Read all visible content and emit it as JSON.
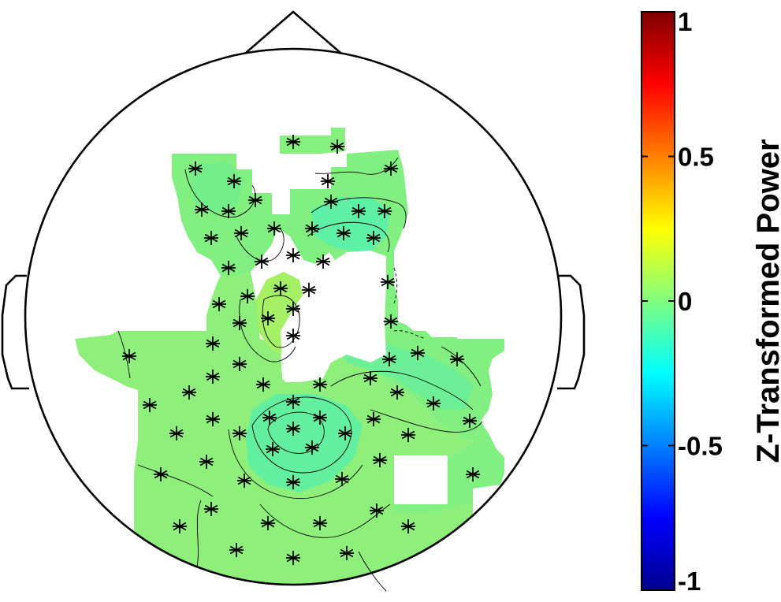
{
  "chart_data": {
    "type": "heatmap",
    "subtype": "eeg-topographic-map",
    "title": "",
    "colorbar": {
      "label": "Z-Transformed Power",
      "range": [
        -1,
        1
      ],
      "ticks": [
        -1,
        -0.5,
        0,
        0.5,
        1
      ],
      "tick_labels": [
        "-1",
        "-0.5",
        "0",
        "0.5",
        "1"
      ],
      "colormap": "jet",
      "position": "right"
    },
    "value_range_shown": [
      -0.15,
      0.1
    ],
    "dominant_color": "#7df07d",
    "masked_areas": "white (non-significant)",
    "electrodes_marker": "asterisk",
    "head": {
      "nose": "top",
      "ears": "left and right"
    }
  }
}
